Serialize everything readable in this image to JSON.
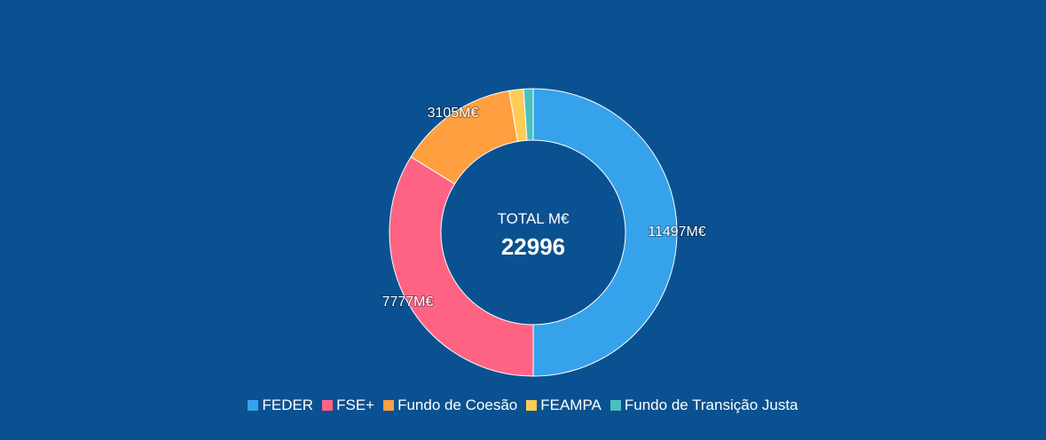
{
  "chart_data": {
    "type": "donut",
    "title": "",
    "center": {
      "title": "TOTAL M€",
      "total": "22996"
    },
    "unit_suffix": "M€",
    "categories": [
      "FEDER",
      "FSE+",
      "Fundo de Coesão",
      "FEAMPA",
      "Fundo de Transição Justa"
    ],
    "values": [
      11497,
      7777,
      3105,
      371,
      246
    ],
    "data_labels": [
      "11497M€",
      "7777M€",
      "3105M€",
      "",
      ""
    ],
    "colors": [
      "#36a2eb",
      "#ff6384",
      "#ff9f40",
      "#ffcd56",
      "#4bc0c0"
    ],
    "legend_position": "bottom"
  }
}
